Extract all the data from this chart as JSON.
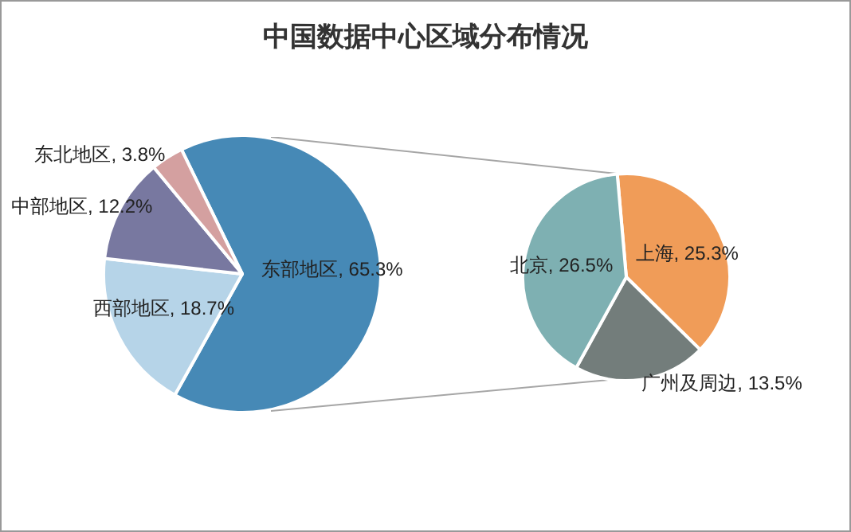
{
  "chart_data": [
    {
      "type": "pie",
      "title": "中国数据中心区域分布情况",
      "categories": [
        "东部地区",
        "西部地区",
        "中部地区",
        "东北地区"
      ],
      "values": [
        65.3,
        18.7,
        12.2,
        3.8
      ],
      "value_labels": [
        "65.3%",
        "18.7%",
        "12.2%",
        "3.8%"
      ],
      "colors": [
        "#4689b6",
        "#b6d4e8",
        "#7878a0",
        "#d4a0a0"
      ],
      "legend": false
    },
    {
      "type": "pie",
      "categories": [
        "上海",
        "广州及周边",
        "北京"
      ],
      "values": [
        25.3,
        13.5,
        26.5
      ],
      "value_labels": [
        "25.3%",
        "13.5%",
        "26.5%"
      ],
      "colors": [
        "#f09c58",
        "#737d7b",
        "#7eb0b2"
      ],
      "legend": false
    }
  ]
}
